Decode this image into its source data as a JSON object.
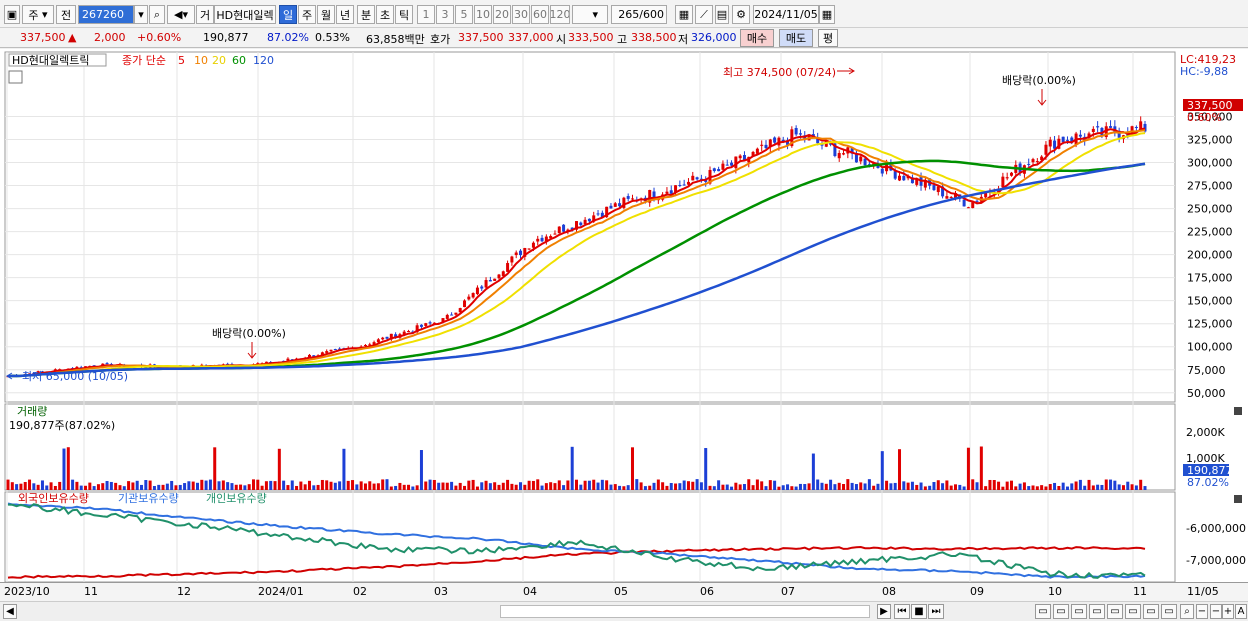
{
  "toolbar": {
    "type_label": "주",
    "prev_label": "전",
    "code": "267260",
    "mode_label": "거",
    "stock_name": "HD현대일렉",
    "periods": [
      "일",
      "주",
      "월",
      "년",
      "분",
      "초",
      "틱"
    ],
    "selected_period": "일",
    "intervals": [
      "1",
      "3",
      "5",
      "10",
      "20",
      "30",
      "60",
      "120"
    ],
    "count": "265",
    "count_max": "/600",
    "date": "2024/11/05"
  },
  "quote": {
    "price": "337,500",
    "change_arrow": "▲",
    "change": "2,000",
    "change_pct": "+0.60%",
    "volume": "190,877",
    "volume_ratio": "87.02%",
    "turnover_rate": "0.53%",
    "amount": "63,858백만",
    "bid_label": "호가",
    "bid1": "337,500",
    "bid2": "337,000",
    "open_label": "시",
    "open": "333,500",
    "high_label": "고",
    "high": "338,500",
    "low_label": "저",
    "low": "326,000",
    "buy_label": "매수",
    "sell_label": "매도",
    "eval_label": "평"
  },
  "price_panel": {
    "title": "HD현대일렉트릭",
    "legend_prefix": "종가 단순",
    "ma_labels": [
      {
        "label": "5",
        "color": "#e00000"
      },
      {
        "label": "10",
        "color": "#f08000"
      },
      {
        "label": "20",
        "color": "#f0e000"
      },
      {
        "label": "60",
        "color": "#009000"
      },
      {
        "label": "120",
        "color": "#2050d0"
      }
    ],
    "lc_label": "LC:419,23",
    "hc_label": "HC:-9,88",
    "current_price_tag": "337,500",
    "current_pct_tag": "0.60%",
    "high_annotation": "최고 374,500 (07/24)",
    "low_annotation": "최저 65,000 (10/05)",
    "dividend_annotation_1": "배당락(0.00%)",
    "dividend_annotation_2": "배당락(0.00%)"
  },
  "volume_panel": {
    "title": "거래량",
    "subtitle": "190,877주(87.02%)",
    "current_tag": "190,877",
    "current_pct": "87.02%"
  },
  "holdings_panel": {
    "legend": [
      "외국인보유수량",
      "기관보유수량",
      "개인보유수량"
    ],
    "colors": [
      "#d00000",
      "#3070e0",
      "#20906a"
    ],
    "ticks": [
      "-6,000,000",
      "-7,000,000"
    ]
  },
  "x_axis": {
    "labels": [
      "2023/10",
      "11",
      "12",
      "2024/01",
      "02",
      "03",
      "04",
      "05",
      "06",
      "07",
      "08",
      "09",
      "10",
      "11"
    ],
    "right_label": "11/05"
  },
  "chart_data": {
    "type": "candlestick",
    "y_ticks": [
      "350,000",
      "325,000",
      "300,000",
      "275,000",
      "250,000",
      "225,000",
      "200,000",
      "175,000",
      "150,000",
      "125,000",
      "100,000",
      "75,000",
      "50,000"
    ],
    "ylim": [
      40000,
      420000
    ],
    "volume_ticks": [
      "2,000K",
      "1,000K"
    ],
    "close_series": [
      {
        "month": "2023/10",
        "close": 68000
      },
      {
        "month": "11",
        "close": 80000
      },
      {
        "month": "12",
        "close": 78000
      },
      {
        "month": "2024/01",
        "close": 82000
      },
      {
        "month": "02",
        "close": 100000
      },
      {
        "month": "03",
        "close": 130000
      },
      {
        "month": "04",
        "close": 215000
      },
      {
        "month": "05",
        "close": 255000
      },
      {
        "month": "06",
        "close": 285000
      },
      {
        "month": "07",
        "close": 330000
      },
      {
        "month": "08",
        "close": 295000
      },
      {
        "month": "09",
        "close": 255000
      },
      {
        "month": "10",
        "close": 325000
      },
      {
        "month": "11",
        "close": 337500
      }
    ]
  }
}
